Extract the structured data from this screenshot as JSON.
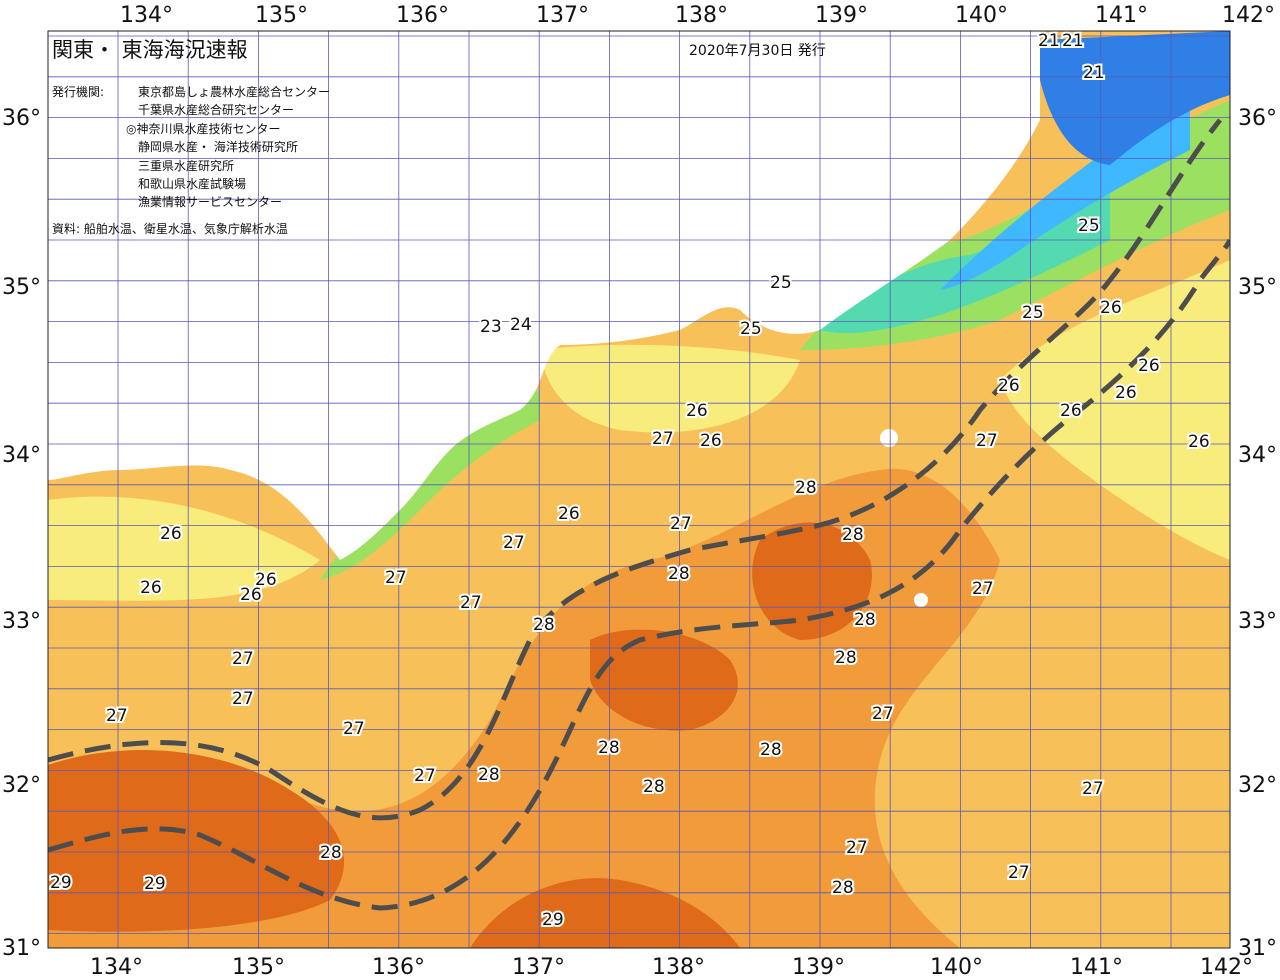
{
  "title": "関東・ 東海海況速報",
  "issue_date": "2020年7月30日 発行",
  "issuer_label": "発行機関:",
  "issuers": [
    "東京都島しょ農林水産総合センター",
    "千葉県水産総合研究センター",
    "◎神奈川県水産技術センター",
    "静岡県水産・ 海洋技術研究所",
    "三重県水産研究所",
    "和歌山県水産試験場",
    "漁業情報サービスセンター"
  ],
  "source": "資料: 船舶水温、衛星水温、気象庁解析水温",
  "longitude_labels": [
    "134°",
    "135°",
    "136°",
    "137°",
    "138°",
    "139°",
    "140°",
    "141°",
    "142°"
  ],
  "latitude_labels": [
    "36°",
    "35°",
    "34°",
    "33°",
    "32°",
    "31°"
  ],
  "colors": {
    "t21": "#2f7fe6",
    "t23": "#3fb8ff",
    "t24": "#55d9b0",
    "t25": "#9be060",
    "t26": "#f7ec7c",
    "t27": "#f8c059",
    "t28": "#f19b3a",
    "t29": "#df6a1a",
    "land": "#ffffff",
    "grid": "#5b5ab8",
    "kuroshio": "#4d4d4d"
  },
  "temperature_labels": [
    "21",
    "21",
    "21",
    "23",
    "24",
    "25",
    "25",
    "25",
    "25",
    "26",
    "26",
    "26",
    "26",
    "26",
    "26",
    "26",
    "26",
    "26",
    "26",
    "26",
    "27",
    "27",
    "27",
    "27",
    "27",
    "27",
    "27",
    "27",
    "27",
    "27",
    "27",
    "27",
    "27",
    "27",
    "27",
    "27",
    "28",
    "28",
    "28",
    "28",
    "28",
    "28",
    "28",
    "28",
    "28",
    "28",
    "28",
    "29",
    "29",
    "29"
  ]
}
